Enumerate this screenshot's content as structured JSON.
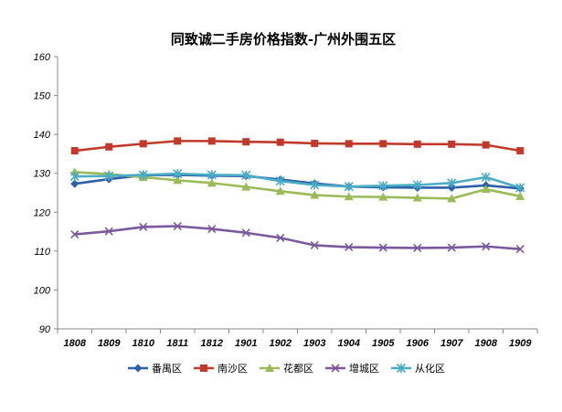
{
  "chart_data": {
    "type": "line",
    "title": "同致诚二手房价格指数-广州外围五区",
    "xlabel": "",
    "ylabel": "",
    "ylim": [
      90,
      160
    ],
    "y_ticks": [
      90,
      100,
      110,
      120,
      130,
      140,
      150,
      160
    ],
    "grid": false,
    "legend_position": "bottom",
    "categories": [
      "1808",
      "1809",
      "1810",
      "1811",
      "1812",
      "1901",
      "1902",
      "1903",
      "1904",
      "1905",
      "1906",
      "1907",
      "1908",
      "1909"
    ],
    "series": [
      {
        "name": "番禺区",
        "color": "#2E5FA8",
        "marker": "diamond",
        "values": [
          127.3,
          128.5,
          129.5,
          129.6,
          129.4,
          129.3,
          128.4,
          127.4,
          126.6,
          126.4,
          126.3,
          126.3,
          126.9,
          126.1
        ]
      },
      {
        "name": "南沙区",
        "color": "#C0392B",
        "marker": "square",
        "values": [
          135.8,
          136.8,
          137.6,
          138.3,
          138.3,
          138.1,
          138.0,
          137.7,
          137.6,
          137.6,
          137.5,
          137.5,
          137.3,
          135.8
        ]
      },
      {
        "name": "花都区",
        "color": "#9BBB59",
        "marker": "triangle",
        "values": [
          130.3,
          129.8,
          129.0,
          128.2,
          127.5,
          126.5,
          125.4,
          124.4,
          124.0,
          123.9,
          123.7,
          123.5,
          125.9,
          124.1
        ]
      },
      {
        "name": "增城区",
        "color": "#7A5A9C",
        "marker": "x",
        "values": [
          114.3,
          115.1,
          116.2,
          116.4,
          115.7,
          114.7,
          113.4,
          111.5,
          111.0,
          110.9,
          110.8,
          110.9,
          111.2,
          110.5
        ]
      },
      {
        "name": "从化区",
        "color": "#4BACC6",
        "marker": "star",
        "values": [
          129.2,
          129.3,
          129.6,
          129.9,
          129.6,
          129.5,
          128.0,
          127.0,
          126.6,
          126.8,
          127.0,
          127.5,
          129.0,
          126.3
        ]
      }
    ]
  }
}
